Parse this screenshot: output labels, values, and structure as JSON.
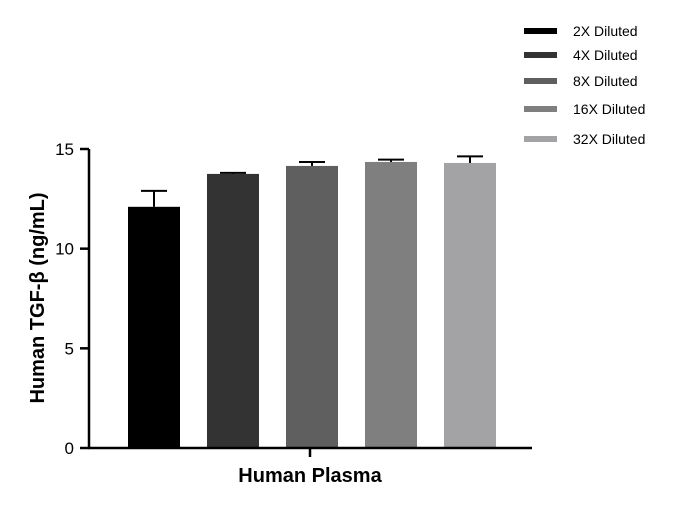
{
  "chart_data": {
    "type": "bar",
    "categories": [
      "Human Plasma"
    ],
    "xlabel": "Human Plasma",
    "ylabel": "Human TGF-β (ng/mL)",
    "ylim": [
      0,
      15
    ],
    "yticks": [
      0,
      5,
      10,
      15
    ],
    "grid": false,
    "legend_position": "top-right",
    "series": [
      {
        "name": "2X Diluted",
        "values": [
          12.1
        ],
        "error": [
          0.8
        ],
        "color": "#000000"
      },
      {
        "name": "4X Diluted",
        "values": [
          13.75
        ],
        "error": [
          0.05
        ],
        "color": "#333333"
      },
      {
        "name": "8X Diluted",
        "values": [
          14.15
        ],
        "error": [
          0.2
        ],
        "color": "#5f5f5f"
      },
      {
        "name": "16X Diluted",
        "values": [
          14.35
        ],
        "error": [
          0.12
        ],
        "color": "#7f7f7f"
      },
      {
        "name": "32X Diluted",
        "values": [
          14.3
        ],
        "error": [
          0.33
        ],
        "color": "#a3a3a5"
      }
    ]
  }
}
